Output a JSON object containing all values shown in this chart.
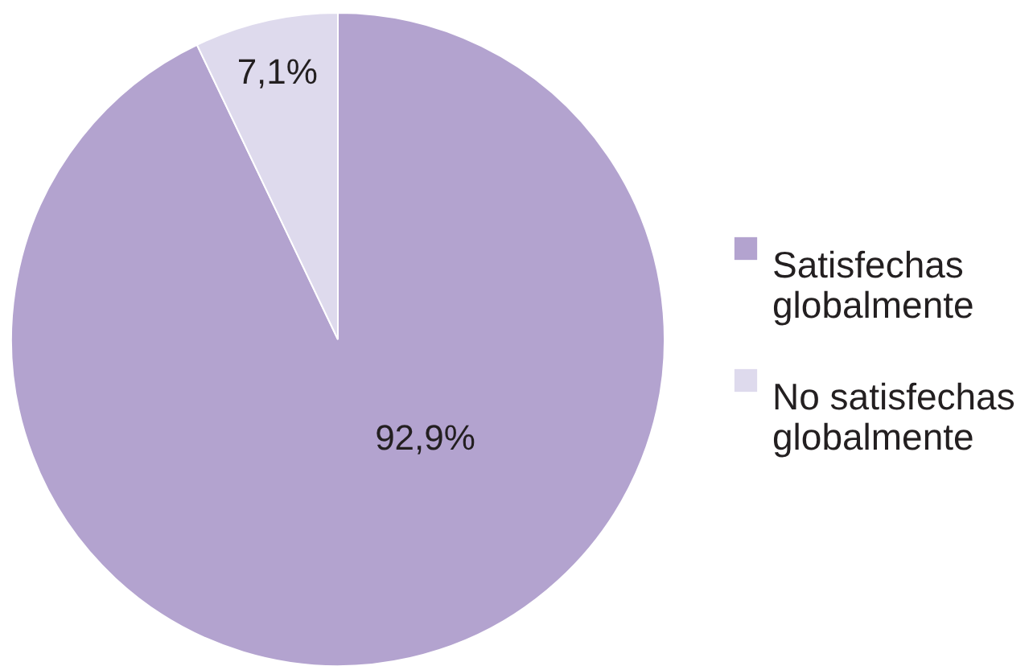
{
  "chart_data": {
    "type": "pie",
    "categories": [
      "Satisfechas globalmente",
      "No satisfechas globalmente"
    ],
    "values": [
      92.9,
      7.1
    ],
    "colors": [
      "#b3a3cf",
      "#dedaed"
    ],
    "value_labels": [
      "92,9%",
      "7,1%"
    ],
    "legend": "right"
  }
}
